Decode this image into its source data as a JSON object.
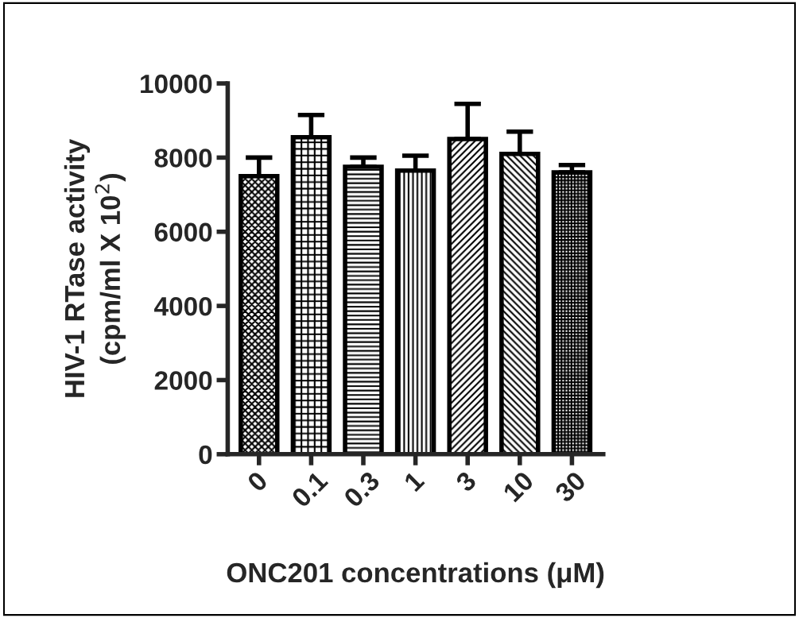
{
  "chart_data": {
    "type": "bar",
    "categories": [
      "0",
      "0.1",
      "0.3",
      "1",
      "3",
      "10",
      "30"
    ],
    "values": [
      7500,
      8550,
      7750,
      7650,
      8500,
      8100,
      7600
    ],
    "errors": [
      500,
      600,
      250,
      400,
      950,
      600,
      200
    ],
    "color": "#000000",
    "xlabel": "ONC201 concentrations (μM)",
    "ylabel": "HIV-1 RTase activity\n(cpm/ml X 10$^{2}$)",
    "ylim": [
      0,
      10000
    ],
    "yticks": [
      0,
      2000,
      4000,
      6000,
      8000,
      10000
    ],
    "grid": false
  }
}
